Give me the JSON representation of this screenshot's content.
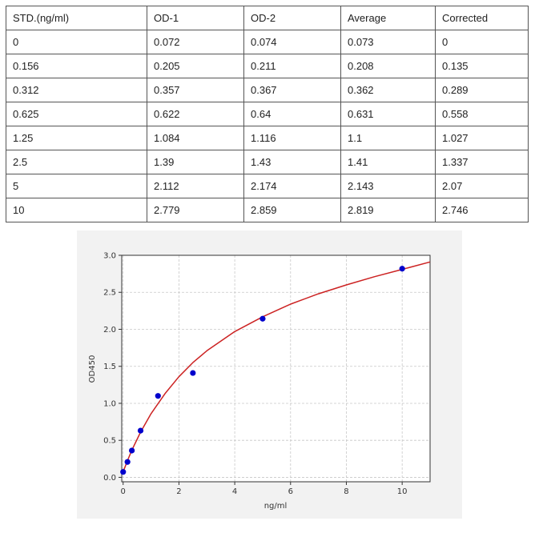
{
  "table": {
    "headers": [
      "STD.(ng/ml)",
      "OD-1",
      "OD-2",
      "Average",
      "Corrected"
    ],
    "rows": [
      [
        "0",
        "0.072",
        "0.074",
        "0.073",
        "0"
      ],
      [
        "0.156",
        "0.205",
        "0.211",
        "0.208",
        "0.135"
      ],
      [
        "0.312",
        "0.357",
        "0.367",
        "0.362",
        "0.289"
      ],
      [
        "0.625",
        "0.622",
        "0.64",
        "0.631",
        "0.558"
      ],
      [
        "1.25",
        "1.084",
        "1.116",
        "1.1",
        "1.027"
      ],
      [
        "2.5",
        "1.39",
        "1.43",
        "1.41",
        "1.337"
      ],
      [
        "5",
        "2.112",
        "2.174",
        "2.143",
        "2.07"
      ],
      [
        "10",
        "2.779",
        "2.859",
        "2.819",
        "2.746"
      ]
    ]
  },
  "chart_data": {
    "type": "scatter",
    "title": "",
    "xlabel": "ng/ml",
    "ylabel": "OD450",
    "xlim": [
      -0.05,
      11
    ],
    "ylim": [
      -0.06,
      3.0
    ],
    "xticks": [
      "0",
      "2",
      "4",
      "6",
      "8",
      "10"
    ],
    "yticks": [
      "0.0",
      "0.5",
      "1.0",
      "1.5",
      "2.0",
      "2.5",
      "3.0"
    ],
    "grid": true,
    "series": [
      {
        "type": "scatter",
        "x": [
          0,
          0.156,
          0.312,
          0.625,
          1.25,
          2.5,
          5,
          10
        ],
        "y": [
          0.073,
          0.208,
          0.362,
          0.631,
          1.1,
          1.41,
          2.143,
          2.819
        ],
        "color": "#0000cc"
      },
      {
        "type": "line",
        "x": [
          0,
          0.156,
          0.312,
          0.625,
          1,
          1.5,
          2,
          2.5,
          3,
          4,
          5,
          6,
          7,
          8,
          9,
          10,
          11
        ],
        "y": [
          0.073,
          0.227,
          0.366,
          0.61,
          0.86,
          1.13,
          1.36,
          1.55,
          1.71,
          1.97,
          2.17,
          2.34,
          2.48,
          2.6,
          2.71,
          2.81,
          2.91
        ],
        "color": "#cc2222"
      }
    ],
    "colors": {
      "panel_bg": "#f2f2f2",
      "plot_bg": "#ffffff",
      "grid": "#c8c8c8",
      "axis": "#333333"
    }
  }
}
